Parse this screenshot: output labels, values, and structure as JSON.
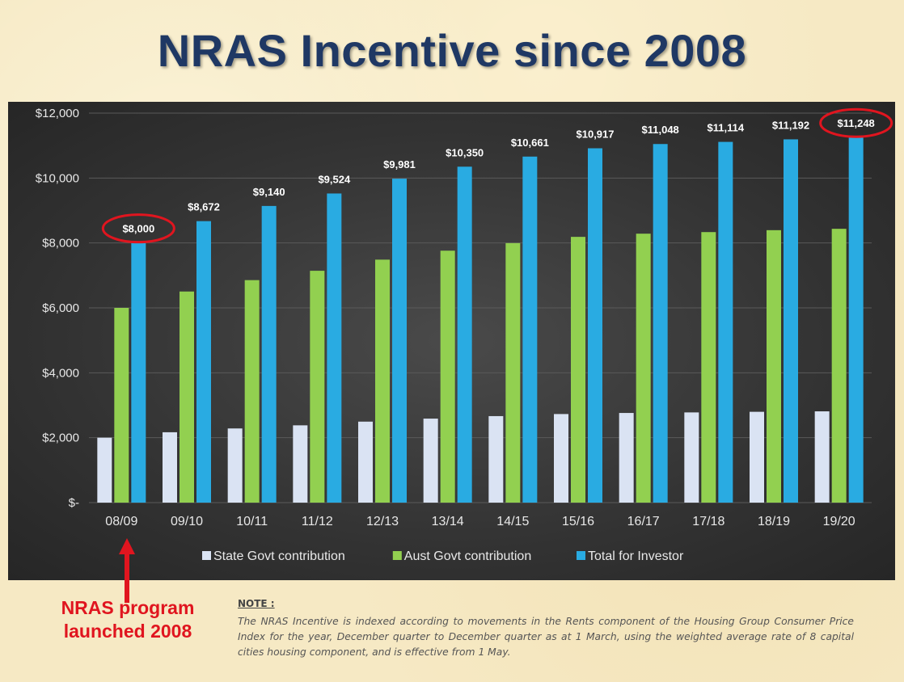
{
  "title": "NRAS Incentive since 2008",
  "chart_data": {
    "type": "bar",
    "categories": [
      "08/09",
      "09/10",
      "10/11",
      "11/12",
      "12/13",
      "13/14",
      "14/15",
      "15/16",
      "16/17",
      "17/18",
      "18/19",
      "19/20"
    ],
    "series": [
      {
        "name": "State Govt contribution",
        "color": "#dae3f3",
        "values": [
          2000,
          2168,
          2285,
          2381,
          2495,
          2588,
          2665,
          2729,
          2762,
          2779,
          2798,
          2812
        ]
      },
      {
        "name": "Aust Govt contribution",
        "color": "#92d050",
        "values": [
          6000,
          6504,
          6855,
          7143,
          7486,
          7762,
          7996,
          8188,
          8286,
          8335,
          8394,
          8436
        ]
      },
      {
        "name": "Total for Investor",
        "color": "#29abe2",
        "values": [
          8000,
          8672,
          9140,
          9524,
          9981,
          10350,
          10661,
          10917,
          11048,
          11114,
          11192,
          11248
        ]
      }
    ],
    "data_labels": [
      "$8,000",
      "$8,672",
      "$9,140",
      "$9,524",
      "$9,981",
      "$10,350",
      "$10,661",
      "$10,917",
      "$11,048",
      "$11,114",
      "$11,192",
      "$11,248"
    ],
    "highlighted_labels": [
      0,
      11
    ],
    "y_ticks": [
      "$-",
      "$2,000",
      "$4,000",
      "$6,000",
      "$8,000",
      "$10,000",
      "$12,000"
    ],
    "ylim": [
      0,
      12000
    ],
    "grid": true,
    "legend_position": "bottom"
  },
  "annotation": {
    "launch_text": "NRAS program\nlaunched 2008",
    "arrow_color": "#e0151f"
  },
  "note": {
    "heading": "NOTE :",
    "body": "The NRAS Incentive is indexed according to movements in the Rents component of the Housing Group Consumer Price Index for the year, December quarter to December quarter as at 1 March, using the weighted average rate of 8 capital cities housing component, and is effective from 1 May."
  }
}
